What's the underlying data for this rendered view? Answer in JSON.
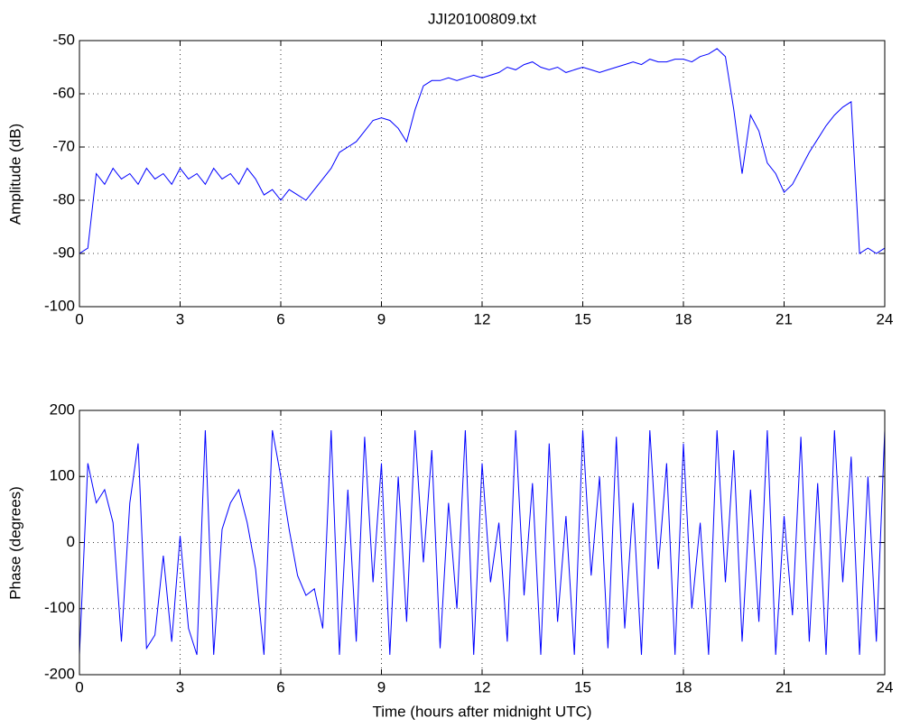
{
  "chart_data": [
    {
      "type": "line",
      "title": "JJI20100809.txt",
      "y_label": "Amplitude (dB)",
      "color": "#0000ff",
      "grid": true,
      "xlim": [
        0,
        24
      ],
      "xticks": [
        0,
        3,
        6,
        9,
        12,
        15,
        18,
        21,
        24
      ],
      "ylim": [
        -100,
        -50
      ],
      "yticks": [
        -100,
        -90,
        -80,
        -70,
        -60,
        -50
      ],
      "x": [
        0,
        0.25,
        0.5,
        0.75,
        1,
        1.25,
        1.5,
        1.75,
        2,
        2.25,
        2.5,
        2.75,
        3,
        3.25,
        3.5,
        3.75,
        4,
        4.25,
        4.5,
        4.75,
        5,
        5.25,
        5.5,
        5.75,
        6,
        6.25,
        6.5,
        6.75,
        7,
        7.25,
        7.5,
        7.75,
        8,
        8.25,
        8.5,
        8.75,
        9,
        9.25,
        9.5,
        9.75,
        10,
        10.25,
        10.5,
        10.75,
        11,
        11.25,
        11.5,
        11.75,
        12,
        12.25,
        12.5,
        12.75,
        13,
        13.25,
        13.5,
        13.75,
        14,
        14.25,
        14.5,
        14.75,
        15,
        15.25,
        15.5,
        15.75,
        16,
        16.25,
        16.5,
        16.75,
        17,
        17.25,
        17.5,
        17.75,
        18,
        18.25,
        18.5,
        18.75,
        19,
        19.25,
        19.5,
        19.75,
        20,
        20.25,
        20.5,
        20.75,
        21,
        21.25,
        21.5,
        21.75,
        22,
        22.25,
        22.5,
        22.75,
        23,
        23.25,
        23.5,
        23.75,
        24
      ],
      "values": [
        -90,
        -89,
        -75,
        -77,
        -74,
        -76,
        -75,
        -77,
        -74,
        -76,
        -75,
        -77,
        -74,
        -76,
        -75,
        -77,
        -74,
        -76,
        -75,
        -77,
        -74,
        -76,
        -79,
        -78,
        -80,
        -78,
        -79,
        -80,
        -78,
        -76,
        -74,
        -71,
        -70,
        -69,
        -67,
        -65,
        -64.5,
        -65,
        -66.5,
        -69,
        -63,
        -58.5,
        -57.5,
        -57.5,
        -57,
        -57.5,
        -57,
        -56.5,
        -57,
        -56.5,
        -56,
        -55,
        -55.5,
        -54.5,
        -54,
        -55,
        -55.5,
        -55,
        -56,
        -55.5,
        -55,
        -55.5,
        -56,
        -55.5,
        -55,
        -54.5,
        -54,
        -54.5,
        -53.5,
        -54,
        -54,
        -53.5,
        -53.5,
        -54,
        -53,
        -52.5,
        -51.5,
        -53,
        -63,
        -75,
        -64,
        -67,
        -73,
        -75,
        -78.5,
        -77,
        -74,
        -71,
        -68.5,
        -66,
        -64,
        -62.5,
        -61.5,
        -90,
        -89,
        -90,
        -89
      ]
    },
    {
      "type": "line",
      "x_label": "Time (hours after midnight UTC)",
      "y_label": "Phase (degrees)",
      "color": "#0000ff",
      "grid": true,
      "xlim": [
        0,
        24
      ],
      "xticks": [
        0,
        3,
        6,
        9,
        12,
        15,
        18,
        21,
        24
      ],
      "ylim": [
        -200,
        200
      ],
      "yticks": [
        -200,
        -100,
        0,
        100,
        200
      ],
      "x": [
        0,
        0.25,
        0.5,
        0.75,
        1,
        1.25,
        1.5,
        1.75,
        2,
        2.25,
        2.5,
        2.75,
        3,
        3.25,
        3.5,
        3.75,
        4,
        4.25,
        4.5,
        4.75,
        5,
        5.25,
        5.5,
        5.75,
        6,
        6.25,
        6.5,
        6.75,
        7,
        7.25,
        7.5,
        7.75,
        8,
        8.25,
        8.5,
        8.75,
        9,
        9.25,
        9.5,
        9.75,
        10,
        10.25,
        10.5,
        10.75,
        11,
        11.25,
        11.5,
        11.75,
        12,
        12.25,
        12.5,
        12.75,
        13,
        13.25,
        13.5,
        13.75,
        14,
        14.25,
        14.5,
        14.75,
        15,
        15.25,
        15.5,
        15.75,
        16,
        16.25,
        16.5,
        16.75,
        17,
        17.25,
        17.5,
        17.75,
        18,
        18.25,
        18.5,
        18.75,
        19,
        19.25,
        19.5,
        19.75,
        20,
        20.25,
        20.5,
        20.75,
        21,
        21.25,
        21.5,
        21.75,
        22,
        22.25,
        22.5,
        22.75,
        23,
        23.25,
        23.5,
        23.75,
        24
      ],
      "values": [
        -170,
        120,
        60,
        80,
        30,
        -150,
        60,
        150,
        -160,
        -140,
        -20,
        -150,
        10,
        -130,
        -170,
        170,
        -170,
        20,
        60,
        80,
        30,
        -40,
        -170,
        170,
        100,
        20,
        -50,
        -80,
        -70,
        -130,
        170,
        -170,
        80,
        -150,
        160,
        -60,
        120,
        -170,
        100,
        -120,
        170,
        -30,
        140,
        -160,
        60,
        -100,
        170,
        -170,
        120,
        -60,
        30,
        -150,
        170,
        -80,
        90,
        -170,
        150,
        -120,
        40,
        -170,
        170,
        -50,
        100,
        -160,
        160,
        -130,
        60,
        -170,
        170,
        -40,
        120,
        -170,
        150,
        -100,
        30,
        -170,
        170,
        -60,
        140,
        -150,
        80,
        -120,
        170,
        -170,
        40,
        -110,
        160,
        -150,
        90,
        -170,
        170,
        -60,
        130,
        -170,
        100,
        -150,
        170
      ]
    }
  ]
}
